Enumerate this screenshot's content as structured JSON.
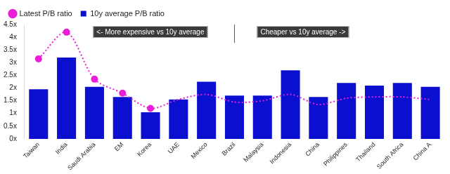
{
  "chart_data": {
    "type": "bar",
    "categories": [
      "Taiwan",
      "India",
      "Saudi Arabia",
      "EM",
      "Korea",
      "UAE",
      "Mexico",
      "Brazil",
      "Malaysia",
      "Indonesia",
      "China",
      "Philippines",
      "Thailand",
      "South Africa",
      "China A"
    ],
    "series": [
      {
        "name": "Latest P/B ratio",
        "type": "line",
        "color": "#e81fd6",
        "line_style": "dotted",
        "marker": "circle",
        "values": [
          3.15,
          4.2,
          2.35,
          1.8,
          1.2,
          1.55,
          1.75,
          1.45,
          1.5,
          1.75,
          1.35,
          1.6,
          1.65,
          1.65,
          1.55
        ]
      },
      {
        "name": "10y average P/B ratio",
        "type": "bar",
        "color": "#0a0fd0",
        "values": [
          1.95,
          3.2,
          2.05,
          1.65,
          1.05,
          1.55,
          2.25,
          1.7,
          1.7,
          2.7,
          1.65,
          2.2,
          2.1,
          2.2,
          2.05
        ]
      }
    ],
    "ylim": [
      0,
      4.5
    ],
    "yticks": [
      {
        "value": 0,
        "label": "0x"
      },
      {
        "value": 0.5,
        "label": "0.5x"
      },
      {
        "value": 1,
        "label": "1x"
      },
      {
        "value": 1.5,
        "label": "1.5x"
      },
      {
        "value": 2,
        "label": "2x"
      },
      {
        "value": 2.5,
        "label": "2.5x"
      },
      {
        "value": 3,
        "label": "3x"
      },
      {
        "value": 3.5,
        "label": "3.5x"
      },
      {
        "value": 4,
        "label": "4x"
      },
      {
        "value": 4.5,
        "label": "4.5x"
      }
    ],
    "annotations": [
      "<- More expensive vs 10y average",
      "Cheaper vs 10y average ->"
    ],
    "grid": false,
    "legend": "top-left"
  }
}
